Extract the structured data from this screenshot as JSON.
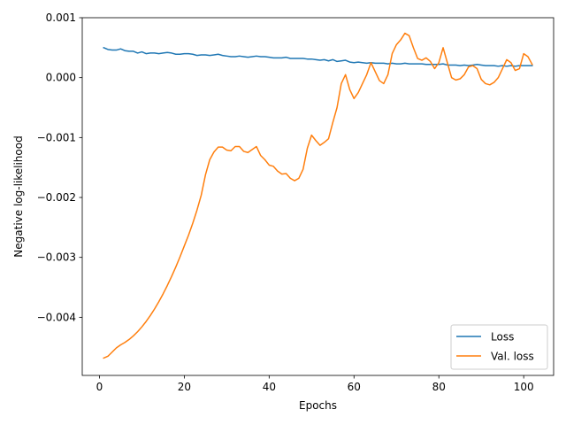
{
  "chart_data": {
    "type": "line",
    "xlabel": "Epochs",
    "ylabel": "Negative log-likelihood",
    "xlim": [
      -4.05,
      107.05
    ],
    "ylim": [
      -0.00497,
      0.001
    ],
    "x_ticks": [
      {
        "value": 0,
        "label": "0"
      },
      {
        "value": 20,
        "label": "20"
      },
      {
        "value": 40,
        "label": "40"
      },
      {
        "value": 60,
        "label": "60"
      },
      {
        "value": 80,
        "label": "80"
      },
      {
        "value": 100,
        "label": "100"
      }
    ],
    "y_ticks": [
      {
        "value": 0.001,
        "label": "0.001"
      },
      {
        "value": 0.0,
        "label": "0.000"
      },
      {
        "value": -0.001,
        "label": "−0.001"
      },
      {
        "value": -0.002,
        "label": "−0.002"
      },
      {
        "value": -0.003,
        "label": "−0.003"
      },
      {
        "value": -0.004,
        "label": "−0.004"
      }
    ],
    "grid": false,
    "legend_position": "lower-right",
    "series": [
      {
        "name": "Loss",
        "color": "#1f77b4",
        "x": [
          1,
          2,
          3,
          4,
          5,
          6,
          7,
          8,
          9,
          10,
          11,
          12,
          13,
          14,
          15,
          16,
          17,
          18,
          19,
          20,
          21,
          22,
          23,
          24,
          25,
          26,
          27,
          28,
          29,
          30,
          31,
          32,
          33,
          34,
          35,
          36,
          37,
          38,
          39,
          40,
          41,
          42,
          43,
          44,
          45,
          46,
          47,
          48,
          49,
          50,
          51,
          52,
          53,
          54,
          55,
          56,
          57,
          58,
          59,
          60,
          61,
          62,
          63,
          64,
          65,
          66,
          67,
          68,
          69,
          70,
          71,
          72,
          73,
          74,
          75,
          76,
          77,
          78,
          79,
          80,
          81,
          82,
          83,
          84,
          85,
          86,
          87,
          88,
          89,
          90,
          91,
          92,
          93,
          94,
          95,
          96,
          97,
          98,
          99,
          100,
          101,
          102
        ],
        "y": [
          0.0005,
          0.00047,
          0.00046,
          0.00046,
          0.00048,
          0.00045,
          0.00044,
          0.00044,
          0.00041,
          0.00043,
          0.0004,
          0.00041,
          0.00041,
          0.0004,
          0.00041,
          0.00042,
          0.00041,
          0.00039,
          0.00039,
          0.0004,
          0.0004,
          0.00039,
          0.00037,
          0.00038,
          0.00038,
          0.00037,
          0.00038,
          0.00039,
          0.00037,
          0.00036,
          0.00035,
          0.00035,
          0.00036,
          0.00035,
          0.00034,
          0.00035,
          0.00036,
          0.00035,
          0.00035,
          0.00034,
          0.00033,
          0.00033,
          0.00033,
          0.00034,
          0.00032,
          0.00032,
          0.00032,
          0.00032,
          0.00031,
          0.00031,
          0.0003,
          0.00029,
          0.0003,
          0.00028,
          0.0003,
          0.00027,
          0.00028,
          0.00029,
          0.00026,
          0.00025,
          0.00026,
          0.00025,
          0.00024,
          0.00025,
          0.00024,
          0.00024,
          0.00024,
          0.00023,
          0.00024,
          0.00023,
          0.00023,
          0.00024,
          0.00023,
          0.00023,
          0.00023,
          0.00023,
          0.00022,
          0.00022,
          0.00022,
          0.00022,
          0.00023,
          0.00021,
          0.00021,
          0.00021,
          0.0002,
          0.00021,
          0.0002,
          0.00021,
          0.00022,
          0.00021,
          0.0002,
          0.0002,
          0.0002,
          0.00019,
          0.0002,
          0.00019,
          0.0002,
          0.00019,
          0.0002,
          0.0002,
          0.0002,
          0.0002
        ]
      },
      {
        "name": "Val. loss",
        "color": "#ff7f0e",
        "x": [
          1,
          2,
          3,
          4,
          5,
          6,
          7,
          8,
          9,
          10,
          11,
          12,
          13,
          14,
          15,
          16,
          17,
          18,
          19,
          20,
          21,
          22,
          23,
          24,
          25,
          26,
          27,
          28,
          29,
          30,
          31,
          32,
          33,
          34,
          35,
          36,
          37,
          38,
          39,
          40,
          41,
          42,
          43,
          44,
          45,
          46,
          47,
          48,
          49,
          50,
          51,
          52,
          53,
          54,
          55,
          56,
          57,
          58,
          59,
          60,
          61,
          62,
          63,
          64,
          65,
          66,
          67,
          68,
          69,
          70,
          71,
          72,
          73,
          74,
          75,
          76,
          77,
          78,
          79,
          80,
          81,
          82,
          83,
          84,
          85,
          86,
          87,
          88,
          89,
          90,
          91,
          92,
          93,
          94,
          95,
          96,
          97,
          98,
          99,
          100,
          101,
          102
        ],
        "y": [
          -0.00468,
          -0.00465,
          -0.00458,
          -0.00451,
          -0.00446,
          -0.00442,
          -0.00437,
          -0.00431,
          -0.00424,
          -0.00416,
          -0.00407,
          -0.00397,
          -0.00386,
          -0.00374,
          -0.00361,
          -0.00347,
          -0.00332,
          -0.00316,
          -0.00299,
          -0.00281,
          -0.00263,
          -0.00243,
          -0.00221,
          -0.00196,
          -0.00162,
          -0.00137,
          -0.00124,
          -0.00116,
          -0.00116,
          -0.00121,
          -0.00122,
          -0.00115,
          -0.00115,
          -0.00123,
          -0.00125,
          -0.0012,
          -0.00115,
          -0.0013,
          -0.00137,
          -0.00146,
          -0.00148,
          -0.00156,
          -0.00161,
          -0.0016,
          -0.00168,
          -0.00172,
          -0.00168,
          -0.00153,
          -0.00118,
          -0.00096,
          -0.00105,
          -0.00113,
          -0.00108,
          -0.00102,
          -0.00075,
          -0.0005,
          -0.0001,
          5e-05,
          -0.0002,
          -0.00035,
          -0.00025,
          -0.0001,
          5e-05,
          0.00025,
          0.0001,
          -5e-05,
          -0.0001,
          5e-05,
          0.0004,
          0.00055,
          0.00063,
          0.00074,
          0.0007,
          0.0005,
          0.00032,
          0.00029,
          0.00033,
          0.00027,
          0.00015,
          0.00025,
          0.0005,
          0.00025,
          0.0,
          -4e-05,
          -2e-05,
          5e-05,
          0.00018,
          0.0002,
          0.00015,
          -3e-05,
          -0.0001,
          -0.00012,
          -8e-05,
          0.0,
          0.00015,
          0.0003,
          0.00025,
          0.00012,
          0.00015,
          0.0004,
          0.00035,
          0.00022
        ]
      }
    ]
  }
}
